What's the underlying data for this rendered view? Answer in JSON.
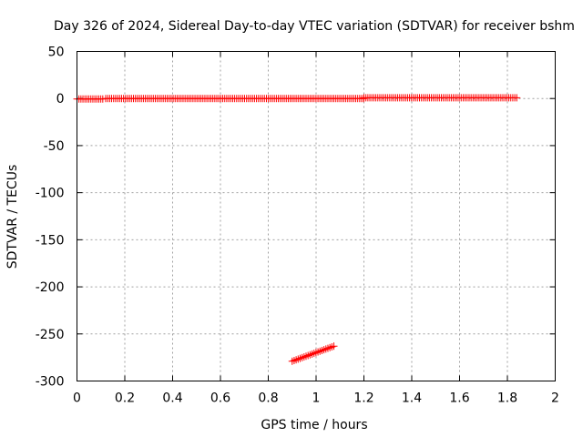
{
  "chart_data": {
    "type": "scatter",
    "title": "Day 326 of 2024, Sidereal Day-to-day VTEC variation (SDTVAR) for receiver bshm",
    "xlabel": "GPS time / hours",
    "ylabel": "SDTVAR / TECUs",
    "xlim": [
      0,
      2
    ],
    "ylim": [
      -300,
      50
    ],
    "x_ticks": [
      "0",
      "0.2",
      "0.4",
      "0.6",
      "0.8",
      "1",
      "1.2",
      "1.4",
      "1.6",
      "1.8",
      "2"
    ],
    "y_ticks": [
      "50",
      "0",
      "-50",
      "-100",
      "-150",
      "-200",
      "-250",
      "-300"
    ],
    "grid": true,
    "marker": "+",
    "color": "#ff0000",
    "series": [
      {
        "segments": [
          {
            "x_start": 0.0,
            "x_end": 0.11,
            "step": 0.0083,
            "y": -0.5
          },
          {
            "x_start": 0.12,
            "x_end": 0.9,
            "step": 0.0083,
            "y": 0.0
          },
          {
            "x_start": 0.9,
            "x_end": 1.2,
            "step": 0.0083,
            "y": 0.0
          },
          {
            "x_start": 1.2,
            "x_end": 1.84,
            "step": 0.0083,
            "y": 0.8
          }
        ],
        "anomaly": {
          "x_start": 0.9,
          "x_end": 1.075,
          "step": 0.0083,
          "y_start": -279,
          "y_end": -263
        }
      }
    ]
  }
}
